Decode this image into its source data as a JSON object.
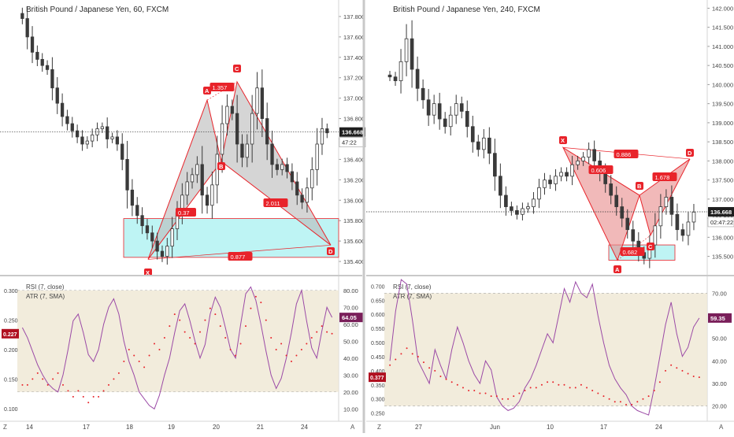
{
  "colors": {
    "up": "#3a3a3a",
    "down": "#3a3a3a",
    "pattern_gray": "#b9b9b9",
    "pattern_red": "#e88a8a",
    "label_red": "#e8232a",
    "zone_fill": "#a8f0f0",
    "zone_stroke": "#e8232a",
    "rsi_line": "#9b4aa6",
    "atr_dots": "#e8232a",
    "rsi_band": "#efe7d3",
    "price_tag": "#1e1e1e",
    "rsi_tag": "#7a1f5a",
    "atr_tag": "#b01020"
  },
  "chart_data": [
    {
      "type": "candlestick",
      "title": "British Pound / Japanese Yen, 60, FXCM",
      "price_ticks": [
        "137.800",
        "137.600",
        "137.400",
        "137.200",
        "137.000",
        "136.800",
        "136.600",
        "136.400",
        "136.200",
        "136.000",
        "135.800",
        "135.600",
        "135.400"
      ],
      "ylim": [
        135.3,
        137.9
      ],
      "current_price": "136.668",
      "countdown": "47:22",
      "date_ticks": [
        "14",
        "17",
        "18",
        "19",
        "20",
        "21",
        "24"
      ],
      "pattern": {
        "points": [
          {
            "name": "X",
            "value": 135.42
          },
          {
            "name": "A",
            "value": 136.98
          },
          {
            "name": "B",
            "value": 136.38
          },
          {
            "name": "C",
            "value": 137.16
          },
          {
            "name": "D",
            "value": 135.56
          }
        ],
        "ratios": [
          "1.357",
          "0.37",
          "2.011",
          "0.877"
        ]
      },
      "zone": [
        135.44,
        135.82
      ],
      "closes": [
        137.78,
        137.6,
        137.45,
        137.38,
        137.32,
        137.28,
        137.1,
        136.95,
        136.82,
        136.75,
        136.68,
        136.62,
        136.55,
        136.58,
        136.64,
        136.7,
        136.72,
        136.6,
        136.62,
        136.55,
        136.4,
        136.1,
        135.95,
        135.85,
        135.75,
        135.68,
        135.6,
        135.5,
        135.45,
        135.55,
        135.72,
        135.88,
        136.05,
        136.18,
        136.25,
        136.35,
        136.05,
        135.95,
        136.15,
        136.45,
        136.75,
        136.92,
        136.85,
        136.55,
        136.42,
        136.55,
        136.85,
        137.1,
        136.8,
        136.55,
        136.35,
        136.3,
        136.35,
        136.28,
        136.18,
        136.05,
        135.98,
        136.12,
        136.3,
        136.55,
        136.7,
        136.66
      ],
      "rsi_panel": {
        "legend_rsi": "RSI (7, close)",
        "legend_atr": "ATR (7, SMA)",
        "left_ticks": [
          "0.300",
          "0.250",
          "0.200",
          "0.150",
          "0.100"
        ],
        "right_ticks": [
          "80.00",
          "70.00",
          "60.00",
          "50.00",
          "40.00",
          "30.00",
          "20.00",
          "10.00"
        ],
        "rsi_value": "64.05",
        "atr_value": "0.227",
        "rsi": [
          58,
          52,
          44,
          36,
          30,
          25,
          22,
          20,
          30,
          45,
          62,
          66,
          55,
          42,
          38,
          45,
          60,
          70,
          75,
          66,
          50,
          38,
          30,
          20,
          16,
          12,
          10,
          18,
          30,
          40,
          55,
          68,
          72,
          62,
          50,
          40,
          48,
          66,
          76,
          70,
          58,
          45,
          40,
          60,
          78,
          82,
          74,
          60,
          44,
          30,
          22,
          28,
          40,
          55,
          72,
          80,
          62,
          46,
          40,
          56,
          70,
          64
        ],
        "atr": [
          0.14,
          0.14,
          0.15,
          0.16,
          0.15,
          0.14,
          0.15,
          0.16,
          0.14,
          0.13,
          0.12,
          0.13,
          0.12,
          0.11,
          0.12,
          0.12,
          0.13,
          0.14,
          0.15,
          0.16,
          0.18,
          0.2,
          0.19,
          0.18,
          0.17,
          0.19,
          0.21,
          0.2,
          0.22,
          0.24,
          0.26,
          0.25,
          0.23,
          0.22,
          0.21,
          0.23,
          0.25,
          0.27,
          0.26,
          0.24,
          0.22,
          0.2,
          0.19,
          0.21,
          0.24,
          0.27,
          0.29,
          0.28,
          0.25,
          0.22,
          0.2,
          0.21,
          0.19,
          0.18,
          0.19,
          0.2,
          0.21,
          0.22,
          0.23,
          0.24,
          0.23,
          0.227
        ]
      }
    },
    {
      "type": "candlestick",
      "title": "British Pound / Japanese Yen, 240, FXCM",
      "price_ticks": [
        "142.000",
        "141.500",
        "141.000",
        "140.500",
        "140.000",
        "139.500",
        "139.000",
        "138.500",
        "138.000",
        "137.500",
        "137.000",
        "136.500",
        "136.000",
        "135.500"
      ],
      "ylim": [
        135.1,
        142.05
      ],
      "current_price": "136.668",
      "countdown": "02:47:22",
      "date_ticks": [
        "27",
        "Jun",
        "10",
        "17",
        "24"
      ],
      "pattern": {
        "points": [
          {
            "name": "X",
            "value": 138.35
          },
          {
            "name": "A",
            "value": 135.4
          },
          {
            "name": "B",
            "value": 137.1
          },
          {
            "name": "C",
            "value": 136.05
          },
          {
            "name": "D",
            "value": 138.05
          }
        ],
        "ratios": [
          "0.886",
          "0.606",
          "1.678",
          "0.682"
        ]
      },
      "zone": [
        135.4,
        135.8
      ],
      "closes": [
        140.2,
        140.1,
        140.6,
        141.2,
        140.4,
        139.9,
        139.6,
        139.2,
        139.5,
        139.1,
        138.9,
        139.2,
        139.5,
        139.3,
        138.9,
        138.5,
        138.3,
        138.6,
        138.2,
        137.6,
        137.1,
        136.8,
        136.7,
        136.6,
        136.75,
        136.8,
        137.0,
        137.3,
        137.5,
        137.4,
        137.6,
        137.7,
        137.6,
        137.9,
        138.0,
        138.1,
        138.3,
        138.0,
        137.7,
        137.4,
        137.1,
        136.8,
        136.5,
        136.2,
        135.9,
        135.6,
        135.45,
        135.8,
        136.3,
        136.8,
        137.05,
        136.6,
        136.2,
        136.05,
        136.4,
        136.66
      ],
      "rsi_panel": {
        "legend_rsi": "RSI (7, close)",
        "legend_atr": "ATR (7, SMA)",
        "left_ticks": [
          "0.700",
          "0.650",
          "0.600",
          "0.550",
          "0.500",
          "0.450",
          "0.400",
          "0.350",
          "0.300",
          "0.250"
        ],
        "right_ticks": [
          "70.00",
          "60.00",
          "50.00",
          "40.00",
          "30.00",
          "20.00"
        ],
        "rsi_value": "59.35",
        "atr_value": "0.377",
        "rsi": [
          40,
          62,
          76,
          74,
          58,
          40,
          35,
          30,
          45,
          38,
          32,
          45,
          55,
          48,
          40,
          34,
          30,
          40,
          36,
          24,
          20,
          18,
          19,
          22,
          28,
          32,
          38,
          45,
          52,
          48,
          60,
          72,
          66,
          75,
          70,
          68,
          74,
          60,
          48,
          38,
          32,
          28,
          25,
          20,
          18,
          17,
          16,
          28,
          42,
          56,
          66,
          52,
          42,
          46,
          55,
          59
        ],
        "atr": [
          0.42,
          0.44,
          0.46,
          0.48,
          0.46,
          0.45,
          0.43,
          0.41,
          0.4,
          0.38,
          0.37,
          0.36,
          0.35,
          0.34,
          0.33,
          0.33,
          0.32,
          0.32,
          0.31,
          0.31,
          0.3,
          0.3,
          0.31,
          0.32,
          0.33,
          0.34,
          0.34,
          0.35,
          0.36,
          0.36,
          0.35,
          0.35,
          0.34,
          0.34,
          0.35,
          0.34,
          0.33,
          0.32,
          0.31,
          0.3,
          0.29,
          0.29,
          0.28,
          0.28,
          0.29,
          0.3,
          0.31,
          0.33,
          0.36,
          0.4,
          0.42,
          0.41,
          0.4,
          0.39,
          0.38,
          0.377
        ]
      }
    }
  ],
  "footer": {
    "axis_mode_left": "Z",
    "axis_mode_right": "A"
  }
}
